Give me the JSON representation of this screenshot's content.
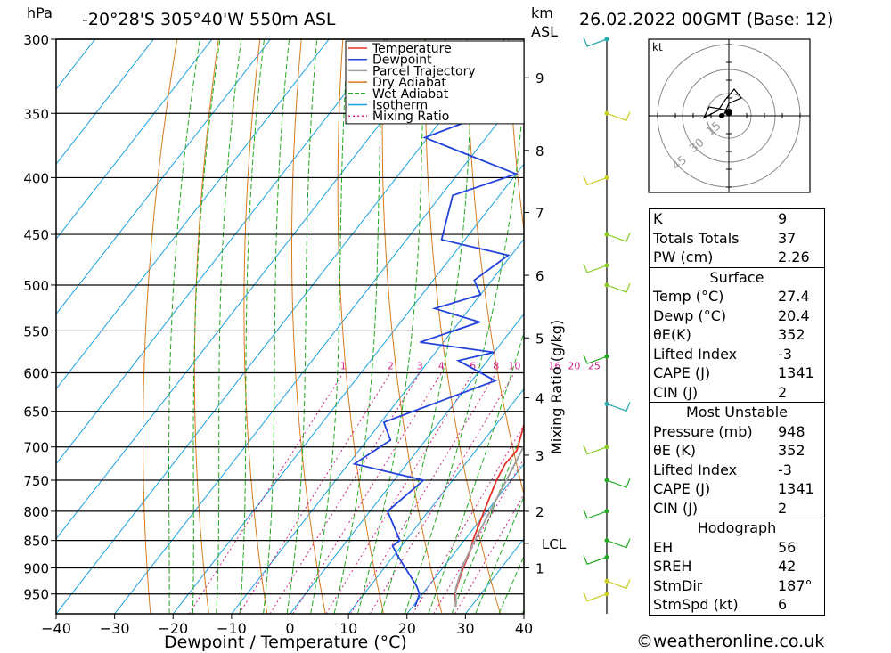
{
  "header": {
    "pressure_unit": "hPa",
    "location": "-20°28'S  305°40'W  550m  ASL",
    "height_unit_line1": "km",
    "height_unit_line2": "ASL",
    "datetime": "26.02.2022  00GMT  (Base: 12)"
  },
  "chart_data": {
    "type": "line",
    "title": "",
    "xlabel": "Dewpoint / Temperature (°C)",
    "ylabel": "hPa",
    "mixing_ratio_axis_label": "Mixing Ratio (g/kg)",
    "xlim": [
      -40,
      40
    ],
    "ylim": [
      990,
      300
    ],
    "x_ticks": [
      -40,
      -30,
      -20,
      -10,
      0,
      10,
      20,
      30,
      40
    ],
    "pressure_levels": [
      300,
      350,
      400,
      450,
      500,
      550,
      600,
      650,
      700,
      750,
      800,
      850,
      900,
      950
    ],
    "km_labels": [
      {
        "label": "9",
        "p": 325
      },
      {
        "label": "8",
        "p": 378
      },
      {
        "label": "7",
        "p": 430
      },
      {
        "label": "6",
        "p": 490
      },
      {
        "label": "5",
        "p": 558
      },
      {
        "label": "4",
        "p": 632
      },
      {
        "label": "3",
        "p": 712
      },
      {
        "label": "2",
        "p": 800
      },
      {
        "label": "LCL",
        "p": 855
      },
      {
        "label": "1",
        "p": 900
      }
    ],
    "mixing_ratio_values": [
      1,
      2,
      3,
      4,
      6,
      8,
      10,
      16,
      20,
      25
    ],
    "mixing_ratio_labels": [
      "1",
      "2",
      "3",
      "4",
      "6",
      "8",
      "10",
      "16",
      "20",
      "25"
    ],
    "legend": {
      "position": "top-right",
      "entries": [
        {
          "name": "Temperature",
          "color": "#e8302a"
        },
        {
          "name": "Dewpoint",
          "color": "#2244dd"
        },
        {
          "name": "Parcel Trajectory",
          "color": "#a0a0a0"
        },
        {
          "name": "Dry Adiabat",
          "color": "#d87a1e"
        },
        {
          "name": "Wet Adiabat",
          "color": "#22aa22"
        },
        {
          "name": "Isotherm",
          "color": "#1aa0e0"
        },
        {
          "name": "Mixing Ratio",
          "color": "#cc2288"
        }
      ]
    },
    "series": [
      {
        "name": "Temperature",
        "color": "#e8302a",
        "points": [
          [
            27.4,
            975
          ],
          [
            25.5,
            950
          ],
          [
            24.5,
            925
          ],
          [
            23.5,
            900
          ],
          [
            22.5,
            870
          ],
          [
            21.5,
            850
          ],
          [
            19.5,
            800
          ],
          [
            17.5,
            750
          ],
          [
            16.8,
            725
          ],
          [
            17.0,
            705
          ],
          [
            15.5,
            680
          ],
          [
            13.0,
            640
          ],
          [
            10.5,
            600
          ],
          [
            9.5,
            580
          ],
          [
            9.2,
            568
          ],
          [
            8.2,
            555
          ],
          [
            7.0,
            525
          ],
          [
            4.8,
            495
          ],
          [
            2.5,
            470
          ],
          [
            1.8,
            455
          ],
          [
            0.5,
            432
          ],
          [
            -2.0,
            405
          ],
          [
            -4.0,
            378
          ],
          [
            -4.8,
            365
          ]
        ]
      },
      {
        "name": "Dewpoint",
        "color": "#2244dd",
        "points": [
          [
            20.4,
            975
          ],
          [
            19.5,
            950
          ],
          [
            18.0,
            935
          ],
          [
            11.0,
            880
          ],
          [
            8.5,
            860
          ],
          [
            9.0,
            850
          ],
          [
            3.0,
            800
          ],
          [
            5.0,
            750
          ],
          [
            -9.0,
            725
          ],
          [
            -6.0,
            690
          ],
          [
            -9.5,
            665
          ],
          [
            4.0,
            610
          ],
          [
            -5.0,
            585
          ],
          [
            0.0,
            575
          ],
          [
            -14.0,
            563
          ],
          [
            -6.5,
            540
          ],
          [
            -16.0,
            525
          ],
          [
            -10.0,
            510
          ],
          [
            -13.0,
            495
          ],
          [
            -10.5,
            470
          ],
          [
            -24.0,
            455
          ],
          [
            -28.0,
            415
          ],
          [
            -20.0,
            397
          ],
          [
            -40.5,
            368
          ],
          [
            -12.0,
            306
          ],
          [
            -12.0,
            300
          ]
        ]
      },
      {
        "name": "Parcel Trajectory",
        "color": "#a0a0a0",
        "points": [
          [
            27.4,
            975
          ],
          [
            25.0,
            940
          ],
          [
            23.3,
            900
          ],
          [
            22.0,
            858
          ],
          [
            21.3,
            830
          ],
          [
            20.0,
            780
          ],
          [
            18.3,
            720
          ],
          [
            17.0,
            680
          ],
          [
            15.2,
            640
          ],
          [
            13.0,
            600
          ],
          [
            11.2,
            570
          ],
          [
            9.7,
            550
          ],
          [
            7.6,
            520
          ],
          [
            5.5,
            490
          ],
          [
            3.4,
            465
          ],
          [
            1.0,
            440
          ],
          [
            -1.6,
            415
          ],
          [
            -4.3,
            390
          ],
          [
            -7.0,
            365
          ]
        ]
      }
    ]
  },
  "wind_profile": {
    "description_color": "#22aa22",
    "barbs": [
      {
        "p": 300,
        "color": "#22aaaa"
      },
      {
        "p": 350,
        "color": "#cccc22"
      },
      {
        "p": 400,
        "color": "#cccc22"
      },
      {
        "p": 450,
        "color": "#88cc22"
      },
      {
        "p": 480,
        "color": "#88cc22"
      },
      {
        "p": 500,
        "color": "#88cc22"
      },
      {
        "p": 580,
        "color": "#22aa22"
      },
      {
        "p": 640,
        "color": "#22aaaa"
      },
      {
        "p": 700,
        "color": "#88cc22"
      },
      {
        "p": 750,
        "color": "#22aa22"
      },
      {
        "p": 800,
        "color": "#22aa22"
      },
      {
        "p": 850,
        "color": "#22aa22"
      },
      {
        "p": 880,
        "color": "#22aa22"
      },
      {
        "p": 925,
        "color": "#cccc22"
      },
      {
        "p": 950,
        "color": "#cccc22"
      }
    ]
  },
  "hodograph": {
    "unit": "kt",
    "ring_labels": [
      "15",
      "30",
      "45"
    ]
  },
  "indices": {
    "general": [
      {
        "label": "K",
        "value": "9"
      },
      {
        "label": "Totals Totals",
        "value": "37"
      },
      {
        "label": "PW (cm)",
        "value": "2.26"
      }
    ],
    "surface": {
      "title": "Surface",
      "rows": [
        {
          "label": "Temp (°C)",
          "value": "27.4"
        },
        {
          "label": "Dewp (°C)",
          "value": "20.4"
        },
        {
          "label": "θE(K)",
          "value": "352"
        },
        {
          "label": "Lifted Index",
          "value": "-3"
        },
        {
          "label": "CAPE (J)",
          "value": "1341"
        },
        {
          "label": "CIN (J)",
          "value": "2"
        }
      ]
    },
    "most_unstable": {
      "title": "Most Unstable",
      "rows": [
        {
          "label": "Pressure (mb)",
          "value": "948"
        },
        {
          "label": "θE (K)",
          "value": "352"
        },
        {
          "label": "Lifted Index",
          "value": "-3"
        },
        {
          "label": "CAPE (J)",
          "value": "1341"
        },
        {
          "label": "CIN (J)",
          "value": "2"
        }
      ]
    },
    "hodograph_stats": {
      "title": "Hodograph",
      "rows": [
        {
          "label": "EH",
          "value": "56"
        },
        {
          "label": "SREH",
          "value": "42"
        },
        {
          "label": "StmDir",
          "value": "187°"
        },
        {
          "label": "StmSpd (kt)",
          "value": "6"
        }
      ]
    }
  },
  "footer": {
    "copyright": "©weatheronline.co.uk"
  }
}
